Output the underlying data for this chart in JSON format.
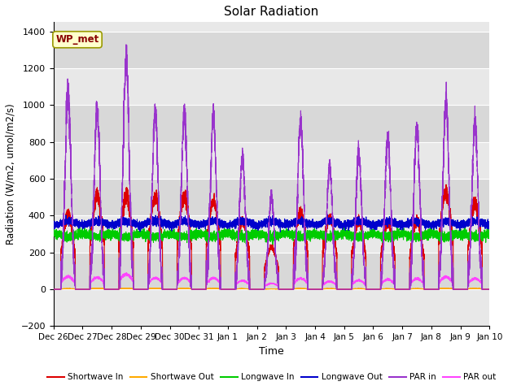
{
  "title": "Solar Radiation",
  "ylabel": "Radiation (W/m2, umol/m2/s)",
  "xlabel": "Time",
  "ylim": [
    -200,
    1450
  ],
  "yticks": [
    -200,
    0,
    200,
    400,
    600,
    800,
    1000,
    1200,
    1400
  ],
  "figsize": [
    6.4,
    4.8
  ],
  "dpi": 100,
  "annotation_text": "WP_met",
  "annotation_bg": "#ffffcc",
  "annotation_border": "#999900",
  "annotation_text_color": "#880000",
  "num_days": 15,
  "series": {
    "shortwave_in": {
      "color": "#dd0000",
      "label": "Shortwave In"
    },
    "shortwave_out": {
      "color": "#ffaa00",
      "label": "Shortwave Out"
    },
    "longwave_in": {
      "color": "#00cc00",
      "label": "Longwave In"
    },
    "longwave_out": {
      "color": "#0000cc",
      "label": "Longwave Out"
    },
    "par_in": {
      "color": "#9933cc",
      "label": "PAR in"
    },
    "par_out": {
      "color": "#ff44ff",
      "label": "PAR out"
    }
  },
  "x_tick_labels": [
    "Dec 26",
    "Dec 27",
    "Dec 28",
    "Dec 29",
    "Dec 30",
    "Dec 31",
    "Jan 1",
    "Jan 2",
    "Jan 3",
    "Jan 4",
    "Jan 5",
    "Jan 6",
    "Jan 7",
    "Jan 8",
    "Jan 9",
    "Jan 10"
  ],
  "day_peak_par_in": [
    1060,
    980,
    1260,
    950,
    950,
    940,
    720,
    500,
    910,
    660,
    740,
    820,
    870,
    1030,
    900
  ],
  "day_peak_shortwave_in": [
    400,
    510,
    510,
    500,
    500,
    480,
    370,
    230,
    420,
    390,
    370,
    360,
    370,
    530,
    465
  ],
  "night_baseline_longwave_out": 345,
  "night_baseline_longwave_in": 305,
  "seed": 42,
  "band_colors": [
    "#e8e8e8",
    "#d8d8d8"
  ],
  "plot_bg": "#e8e8e8"
}
